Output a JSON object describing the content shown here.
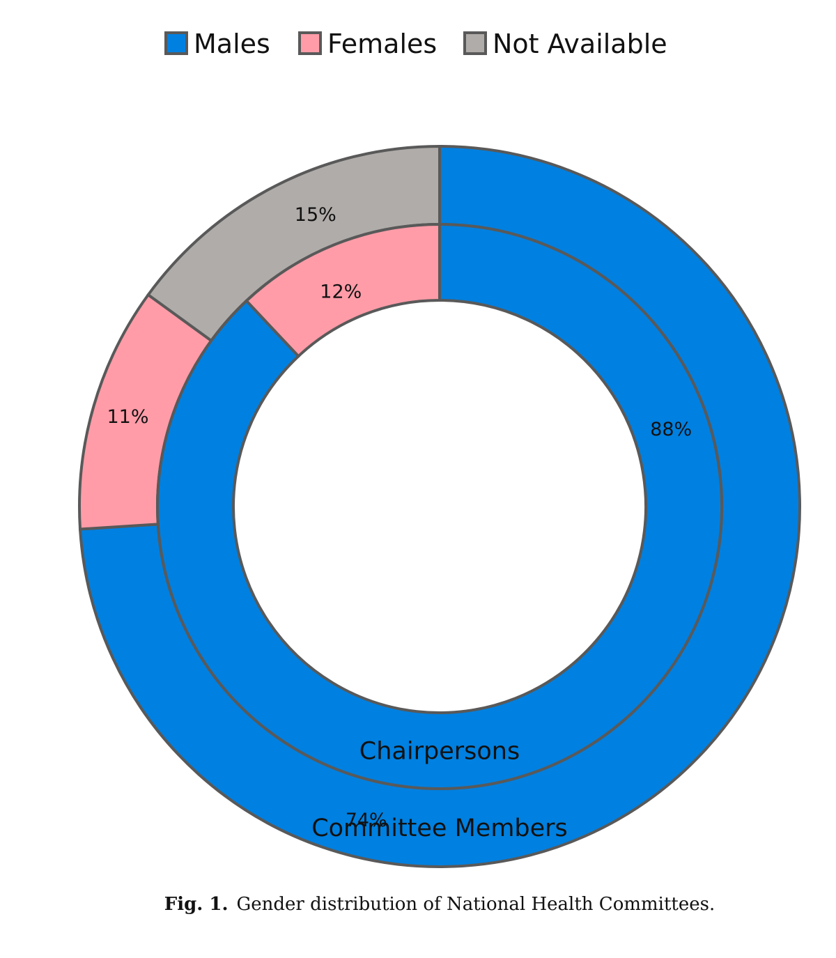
{
  "chart_data": {
    "type": "donut",
    "categories": [
      "Males",
      "Females",
      "Not Available"
    ],
    "colors": {
      "Males": "#0080E0",
      "Females": "#FF9CA8",
      "Not Available": "#B0ACAA",
      "border": "#595959"
    },
    "legend": {
      "placement": "top",
      "entries": [
        "Males",
        "Females",
        "Not Available"
      ]
    },
    "rings": [
      {
        "ring": "outer",
        "name": "Committee Members",
        "values": [
          74,
          11,
          15
        ],
        "labels": [
          "74%",
          "11%",
          "15%"
        ]
      },
      {
        "ring": "inner",
        "name": "Chairpersons",
        "values": [
          88,
          12,
          0
        ],
        "labels": [
          "88%",
          "12%",
          ""
        ]
      }
    ]
  },
  "caption": {
    "label": "Fig. 1.",
    "text": "Gender distribution of National Health Committees."
  }
}
